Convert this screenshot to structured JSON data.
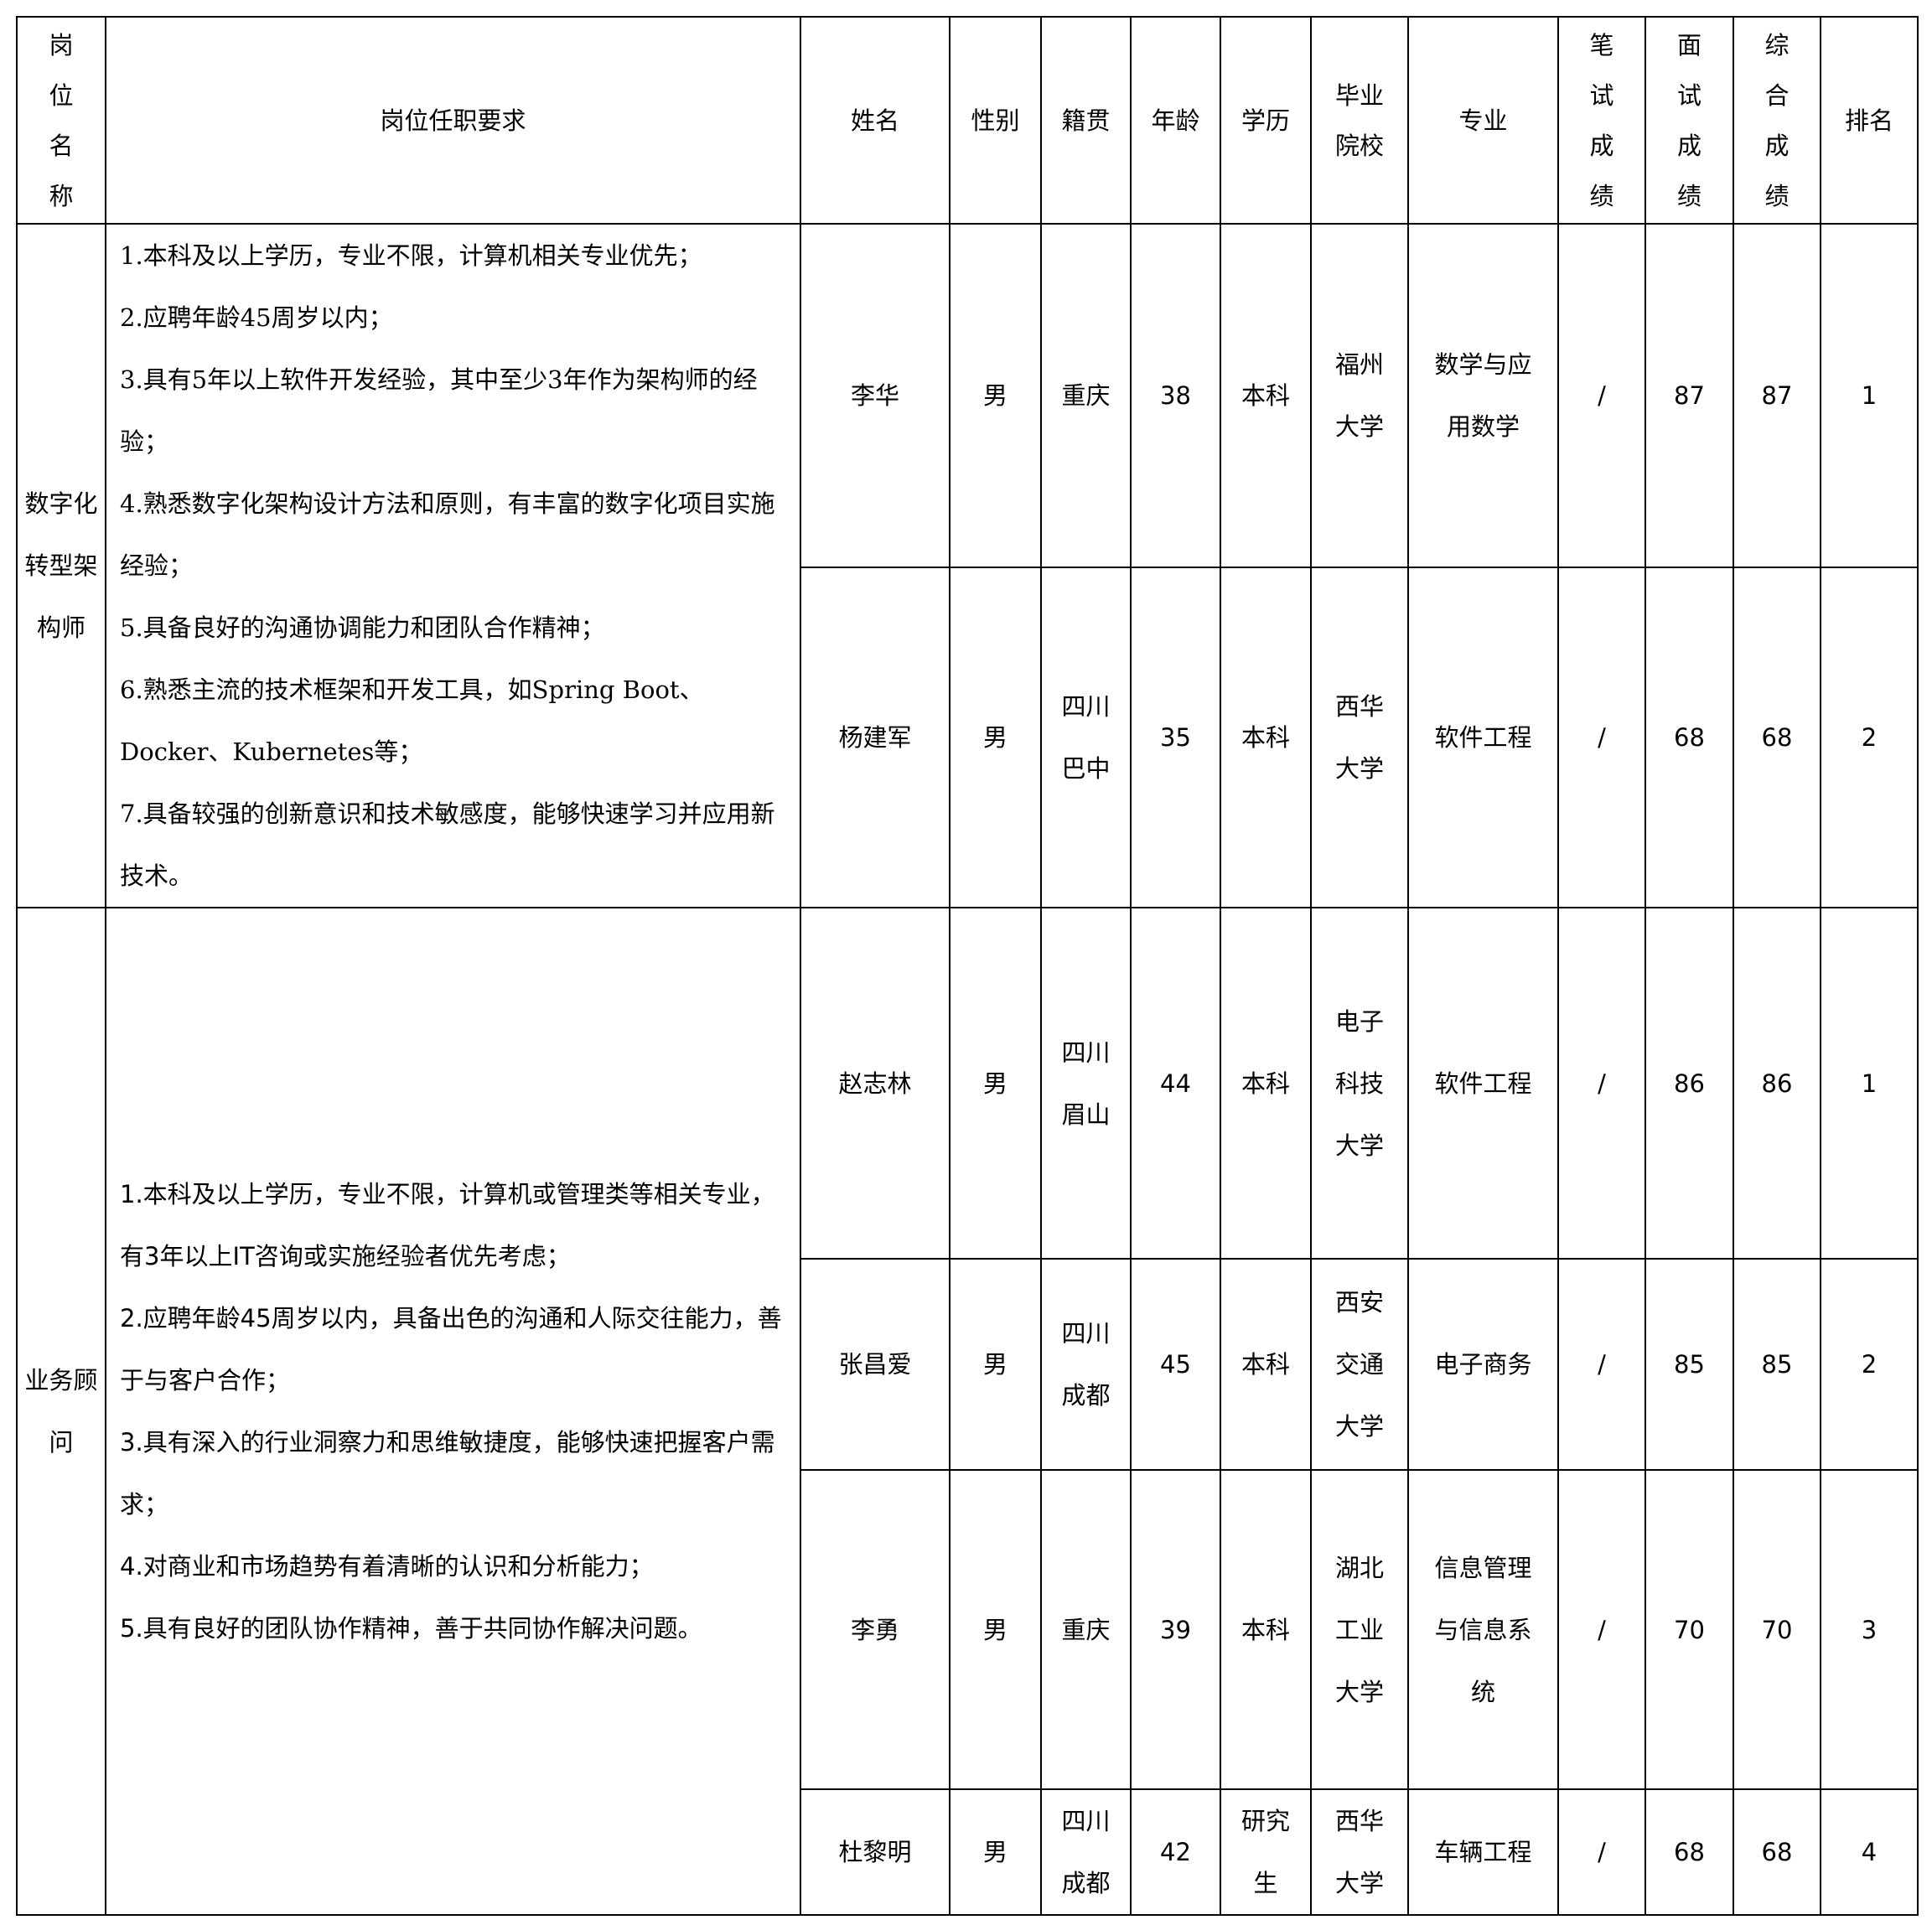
{
  "headers": [
    "岗位名称",
    "岗位任职要求",
    "姓名",
    "性别",
    "籍贯",
    "年龄",
    "学历",
    "毕业院校",
    "专业",
    "笔试成绩",
    "面试成绩",
    "综合成绩",
    "排名"
  ],
  "positions": [
    {
      "name": "数字化转型架构师",
      "requirements": [
        "1.本科及以上学历，专业不限，计算机相关专业优先；",
        "2.应聘年龄45周岁以内；",
        "3.具有5年以上软件开发经验，其中至少3年作为架构师的经验；",
        "4.熟悉数字化架构设计方法和原则，有丰富的数字化项目实施经验；",
        "5.具备良好的沟通协调能力和团队合作精神；",
        "6.熟悉主流的技术框架和开发工具，如Spring Boot、Docker、Kubernetes等；",
        "7.具备较强的创新意识和技术敏感度，能够快速学习并应用新技术。"
      ],
      "candidates": [
        {
          "name": "李华",
          "gender": "男",
          "origin": "重庆",
          "age": "38",
          "education": "本科",
          "school": "福州大学",
          "major": "数学与应用数学",
          "written": "/",
          "interview": "87",
          "total": "87",
          "rank": "1"
        },
        {
          "name": "杨建军",
          "gender": "男",
          "origin": "四川巴中",
          "age": "35",
          "education": "本科",
          "school": "西华大学",
          "major": "软件工程",
          "written": "/",
          "interview": "68",
          "total": "68",
          "rank": "2"
        }
      ]
    },
    {
      "name": "业务顾问",
      "requirements": [
        "1.本科及以上学历，专业不限，计算机或管理类等相关专业，有3年以上IT咨询或实施经验者优先考虑；",
        "2.应聘年龄45周岁以内，具备出色的沟通和人际交往能力，善于与客户合作；",
        "3.具有深入的行业洞察力和思维敏捷度，能够快速把握客户需求；",
        "4.对商业和市场趋势有着清晰的认识和分析能力；",
        "5.具有良好的团队协作精神，善于共同协作解决问题。"
      ],
      "candidates": [
        {
          "name": "赵志林",
          "gender": "男",
          "origin": "四川眉山",
          "age": "44",
          "education": "本科",
          "school": "电子科技大学",
          "major": "软件工程",
          "written": "/",
          "interview": "86",
          "total": "86",
          "rank": "1"
        },
        {
          "name": "张昌爱",
          "gender": "男",
          "origin": "四川成都",
          "age": "45",
          "education": "本科",
          "school": "西安交通大学",
          "major": "电子商务",
          "written": "/",
          "interview": "85",
          "total": "85",
          "rank": "2"
        },
        {
          "name": "李勇",
          "gender": "男",
          "origin": "重庆",
          "age": "39",
          "education": "本科",
          "school": "湖北工业大学",
          "major": "信息管理与信息系统",
          "written": "/",
          "interview": "70",
          "total": "70",
          "rank": "3"
        },
        {
          "name": "杜黎明",
          "gender": "男",
          "origin": "四川成都",
          "age": "42",
          "education": "研究生",
          "school": "西华大学",
          "major": "车辆工程",
          "written": "/",
          "interview": "68",
          "total": "68",
          "rank": "4"
        }
      ]
    }
  ]
}
